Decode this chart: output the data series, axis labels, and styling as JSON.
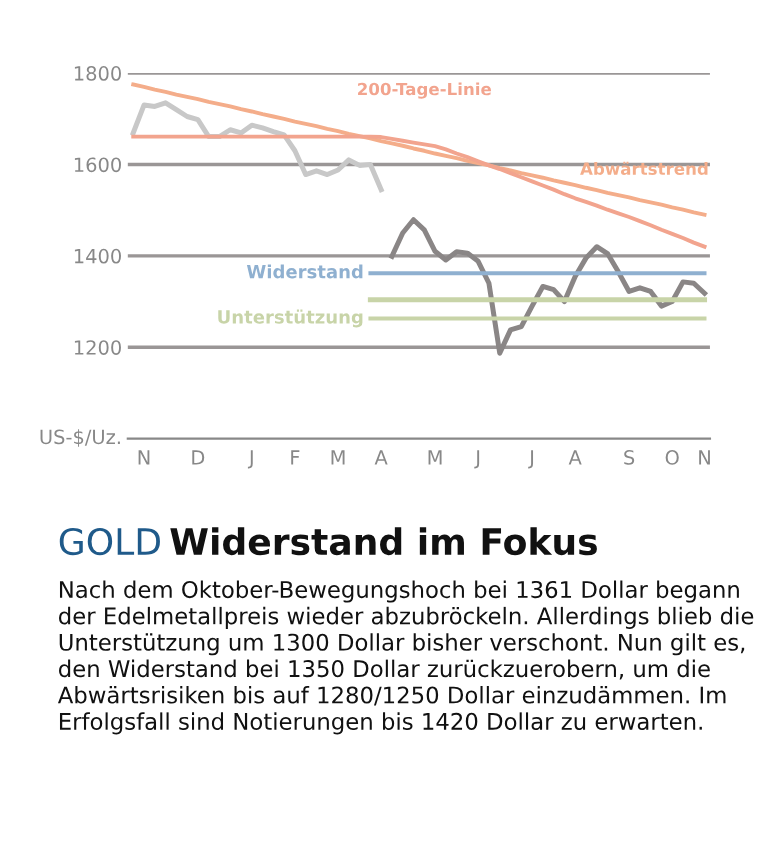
{
  "chart_data": {
    "type": "line",
    "title": "GOLD",
    "subtitle": "Widerstand im Fokus",
    "ylabel": "US-$/Uz.",
    "annotations": [
      "Nach dem Oktober-Bewegungshoch bei 1361 Dollar begann der Edelmetallpreis wieder abzubröckeln. Allerdings blieb die Unterstützung um 1300 Dollar bisher verschont. Nun gilt es, den Widerstand bei 1350 Dollar zurückzuerobern, um die Abwärtsrisiken bis auf 1280/1250 Dollar einzudämmen. Im Erfolgsfall sind Notierungen bis 1420 Dollar zu erwarten."
    ],
    "categories": [
      null,
      "N",
      null,
      null,
      null,
      null,
      "D",
      null,
      null,
      null,
      null,
      "J",
      null,
      null,
      null,
      "F",
      null,
      null,
      null,
      "M",
      null,
      null,
      null,
      "A",
      null,
      null,
      null,
      null,
      "M",
      null,
      null,
      null,
      "J",
      null,
      null,
      null,
      null,
      "J",
      null,
      null,
      null,
      "A",
      null,
      null,
      null,
      null,
      "S",
      null,
      null,
      null,
      "O",
      null,
      null,
      "N"
    ],
    "ylim": [
      1000,
      1800
    ],
    "yticks": [
      1200,
      1400,
      1600,
      1800
    ],
    "grid": "y",
    "legend": false,
    "series": [
      {
        "color": "#c8c8c8",
        "values": [
          1669,
          1730,
          1727,
          1735,
          1720,
          1705,
          1698,
          1661,
          1661,
          1676,
          1669,
          1686,
          1680,
          1672,
          1665,
          1630,
          1578,
          1586,
          1578,
          1588,
          1610,
          1598,
          1600,
          1545,
          null,
          null,
          null,
          null,
          null,
          null,
          null,
          null,
          null,
          null,
          null,
          null,
          null,
          null,
          null,
          null,
          null,
          null,
          null,
          null,
          null,
          null,
          null,
          null,
          null,
          null,
          null,
          null,
          null,
          null
        ]
      },
      {
        "color": "#8a8686",
        "values": [
          null,
          null,
          null,
          null,
          null,
          null,
          null,
          null,
          null,
          null,
          null,
          null,
          null,
          null,
          null,
          null,
          null,
          null,
          null,
          null,
          null,
          null,
          null,
          null,
          1399,
          1450,
          1479,
          1457,
          1410,
          1391,
          1409,
          1406,
          1388,
          1340,
          1187,
          1238,
          1245,
          1290,
          1333,
          1326,
          1300,
          1355,
          1395,
          1420,
          1405,
          1365,
          1322,
          1330,
          1322,
          1290,
          1300,
          1343,
          1340,
          1318
        ]
      },
      {
        "name": "Abwärtstrend",
        "color": "#f4ad8a",
        "values": [
          1775,
          1770,
          1764,
          1759,
          1753,
          1748,
          1743,
          1737,
          1732,
          1727,
          1721,
          1716,
          1710,
          1705,
          1700,
          1694,
          1689,
          1684,
          1678,
          1673,
          1667,
          1662,
          1657,
          1651,
          1646,
          1641,
          1635,
          1630,
          1624,
          1619,
          1614,
          1608,
          1603,
          1598,
          1592,
          1587,
          1581,
          1576,
          1571,
          1565,
          1560,
          1555,
          1549,
          1544,
          1538,
          1533,
          1528,
          1522,
          1517,
          1512,
          1506,
          1501,
          1495,
          1490
        ]
      },
      {
        "name": "200-Tage-Linie",
        "color": "#f2a48e",
        "values": [
          1661,
          1661,
          1661,
          1661,
          1661,
          1661,
          1661,
          1661,
          1661,
          1661,
          1661,
          1661,
          1661,
          1661,
          1661,
          1661,
          1661,
          1661,
          1661,
          1661,
          1661,
          1661,
          1661,
          1660,
          1656,
          1652,
          1648,
          1644,
          1640,
          1633,
          1624,
          1616,
          1607,
          1598,
          1590,
          1581,
          1572,
          1563,
          1554,
          1545,
          1535,
          1526,
          1518,
          1510,
          1501,
          1493,
          1485,
          1476,
          1467,
          1457,
          1448,
          1439,
          1429,
          1420
        ]
      },
      {
        "name": "Widerstand",
        "color": "#8fb0d0",
        "values": [
          null,
          null,
          null,
          null,
          null,
          null,
          null,
          null,
          null,
          null,
          null,
          null,
          null,
          null,
          null,
          null,
          null,
          null,
          null,
          null,
          null,
          null,
          1362,
          1362,
          1362,
          1362,
          1362,
          1362,
          1362,
          1362,
          1362,
          1362,
          1362,
          1362,
          1362,
          1362,
          1362,
          1362,
          1362,
          1362,
          1362,
          1362,
          1362,
          1362,
          1362,
          1362,
          1362,
          1362,
          1362,
          1362,
          1362,
          1362,
          1362,
          1362
        ]
      },
      {
        "name": "Unterstützung",
        "color": "#c8d4a8",
        "values": [
          null,
          null,
          null,
          null,
          null,
          null,
          null,
          null,
          null,
          null,
          null,
          null,
          null,
          null,
          null,
          null,
          null,
          null,
          null,
          null,
          null,
          null,
          1263,
          1263,
          1263,
          1263,
          1263,
          1263,
          1263,
          1263,
          1263,
          1263,
          1263,
          1263,
          1263,
          1263,
          1263,
          1263,
          1263,
          1263,
          1263,
          1263,
          1263,
          1263,
          1263,
          1263,
          1263,
          1263,
          1263,
          1263,
          1263,
          1263,
          1263,
          1263
        ]
      },
      {
        "color": "#c8d4a8",
        "values": [
          null,
          null,
          null,
          null,
          null,
          null,
          null,
          null,
          null,
          null,
          null,
          null,
          null,
          null,
          null,
          null,
          null,
          null,
          null,
          null,
          null,
          null,
          1304,
          1304,
          1304,
          1304,
          1304,
          1304,
          1304,
          1304,
          1304,
          1304,
          1304,
          1304,
          1304,
          1304,
          1304,
          1304,
          1304,
          1304,
          1304,
          1304,
          1304,
          1304,
          1304,
          1304,
          1304,
          1304,
          1304,
          1304,
          1304,
          1304,
          1304,
          1304
        ]
      }
    ]
  }
}
